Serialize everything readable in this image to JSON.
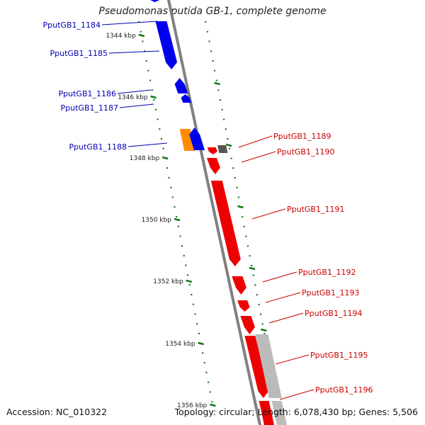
{
  "title": "Pseudomonas putida GB-1, complete genome",
  "footer": {
    "accession": "Accession: NC_010322",
    "summary": "Topology: circular; Length: 6,078,430 bp; Genes: 5,506"
  },
  "colors": {
    "forward_gene": "#0000ee",
    "reverse_gene": "#ee0000",
    "other_gene": "#ff8c00",
    "pseudo_gene": "#bbbbbb",
    "dark_gene": "#555555",
    "tick_mark": "#117711",
    "backbone": "#808080",
    "forward_label": "#0000b0",
    "reverse_label": "#cc0000"
  },
  "ticks": [
    "1344 kbp",
    "1346 kbp",
    "1348 kbp",
    "1350 kbp",
    "1352 kbp",
    "1354 kbp",
    "1356 kbp"
  ],
  "genes": [
    {
      "name": "PputGB1_1184",
      "strand": "forward"
    },
    {
      "name": "PputGB1_1185",
      "strand": "forward"
    },
    {
      "name": "PputGB1_1186",
      "strand": "forward"
    },
    {
      "name": "PputGB1_1187",
      "strand": "forward"
    },
    {
      "name": "PputGB1_1188",
      "strand": "forward"
    },
    {
      "name": "PputGB1_1189",
      "strand": "reverse"
    },
    {
      "name": "PputGB1_1190",
      "strand": "reverse"
    },
    {
      "name": "PputGB1_1191",
      "strand": "reverse"
    },
    {
      "name": "PputGB1_1192",
      "strand": "reverse"
    },
    {
      "name": "PputGB1_1193",
      "strand": "reverse"
    },
    {
      "name": "PputGB1_1194",
      "strand": "reverse"
    },
    {
      "name": "PputGB1_1195",
      "strand": "reverse"
    },
    {
      "name": "PputGB1_1196",
      "strand": "reverse"
    }
  ]
}
